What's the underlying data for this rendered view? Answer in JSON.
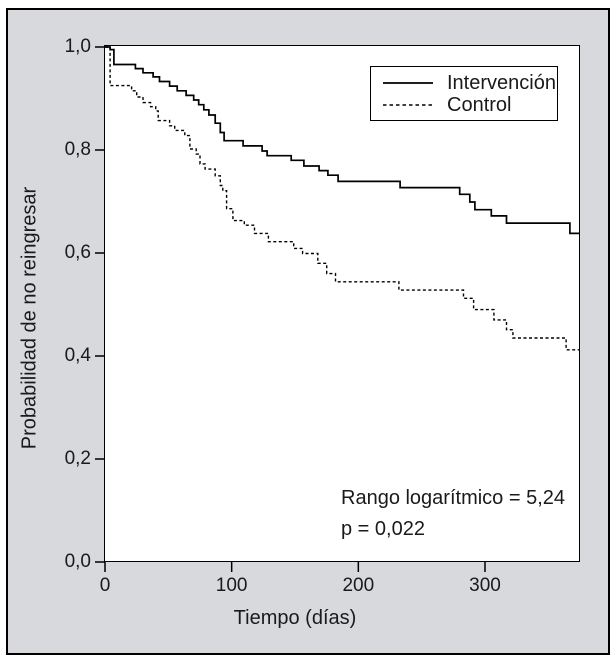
{
  "figure": {
    "outer_background": "#ffffff",
    "panel_background": "#d7d9dc",
    "plot_background": "#ffffff",
    "line_color": "#000000"
  },
  "chart_data": {
    "type": "line",
    "variant": "kaplan_meier_step",
    "title": "",
    "xlabel": "Tiempo (días)",
    "ylabel": "Probabilidad de no reingresar",
    "xlim": [
      0,
      375
    ],
    "ylim": [
      0.0,
      1.0
    ],
    "grid": false,
    "x_ticks": [
      {
        "value": 0,
        "label": "0"
      },
      {
        "value": 100,
        "label": "100"
      },
      {
        "value": 200,
        "label": "200"
      },
      {
        "value": 300,
        "label": "300"
      }
    ],
    "y_ticks": [
      {
        "value": 1.0,
        "label": "1,0"
      },
      {
        "value": 0.8,
        "label": "0,8"
      },
      {
        "value": 0.6,
        "label": "0,6"
      },
      {
        "value": 0.4,
        "label": "0,4"
      },
      {
        "value": 0.2,
        "label": "0,2"
      },
      {
        "value": 0.0,
        "label": "0,0"
      }
    ],
    "legend": {
      "position": "top-right",
      "entries": [
        {
          "label": "Intervención",
          "line": "solid"
        },
        {
          "label": "Control",
          "line": "dashed"
        }
      ]
    },
    "annotations": [
      {
        "text": "Rango logarítmico = 5,24"
      },
      {
        "text": "p = 0,022"
      }
    ],
    "series": [
      {
        "name": "Intervención",
        "line": "solid",
        "points": [
          [
            0,
            1.0
          ],
          [
            4,
            0.995
          ],
          [
            7,
            0.966
          ],
          [
            24,
            0.958
          ],
          [
            30,
            0.95
          ],
          [
            38,
            0.942
          ],
          [
            43,
            0.933
          ],
          [
            51,
            0.924
          ],
          [
            57,
            0.915
          ],
          [
            64,
            0.906
          ],
          [
            70,
            0.897
          ],
          [
            74,
            0.888
          ],
          [
            78,
            0.878
          ],
          [
            82,
            0.868
          ],
          [
            87,
            0.852
          ],
          [
            91,
            0.834
          ],
          [
            94,
            0.818
          ],
          [
            109,
            0.808
          ],
          [
            124,
            0.798
          ],
          [
            128,
            0.789
          ],
          [
            147,
            0.78
          ],
          [
            157,
            0.769
          ],
          [
            169,
            0.76
          ],
          [
            176,
            0.751
          ],
          [
            184,
            0.739
          ],
          [
            233,
            0.727
          ],
          [
            280,
            0.714
          ],
          [
            288,
            0.699
          ],
          [
            292,
            0.684
          ],
          [
            305,
            0.672
          ],
          [
            317,
            0.658
          ],
          [
            367,
            0.638
          ]
        ]
      },
      {
        "name": "Control",
        "line": "dashed",
        "points": [
          [
            0,
            1.0
          ],
          [
            4,
            0.925
          ],
          [
            21,
            0.915
          ],
          [
            25,
            0.903
          ],
          [
            30,
            0.892
          ],
          [
            36,
            0.884
          ],
          [
            40,
            0.876
          ],
          [
            42,
            0.857
          ],
          [
            51,
            0.847
          ],
          [
            55,
            0.838
          ],
          [
            63,
            0.828
          ],
          [
            67,
            0.802
          ],
          [
            72,
            0.792
          ],
          [
            75,
            0.773
          ],
          [
            79,
            0.763
          ],
          [
            87,
            0.75
          ],
          [
            91,
            0.731
          ],
          [
            93,
            0.721
          ],
          [
            96,
            0.686
          ],
          [
            101,
            0.663
          ],
          [
            110,
            0.654
          ],
          [
            118,
            0.638
          ],
          [
            129,
            0.622
          ],
          [
            149,
            0.609
          ],
          [
            156,
            0.599
          ],
          [
            168,
            0.58
          ],
          [
            175,
            0.56
          ],
          [
            182,
            0.544
          ],
          [
            232,
            0.528
          ],
          [
            283,
            0.512
          ],
          [
            291,
            0.49
          ],
          [
            307,
            0.47
          ],
          [
            317,
            0.451
          ],
          [
            322,
            0.435
          ],
          [
            364,
            0.412
          ]
        ]
      }
    ]
  }
}
